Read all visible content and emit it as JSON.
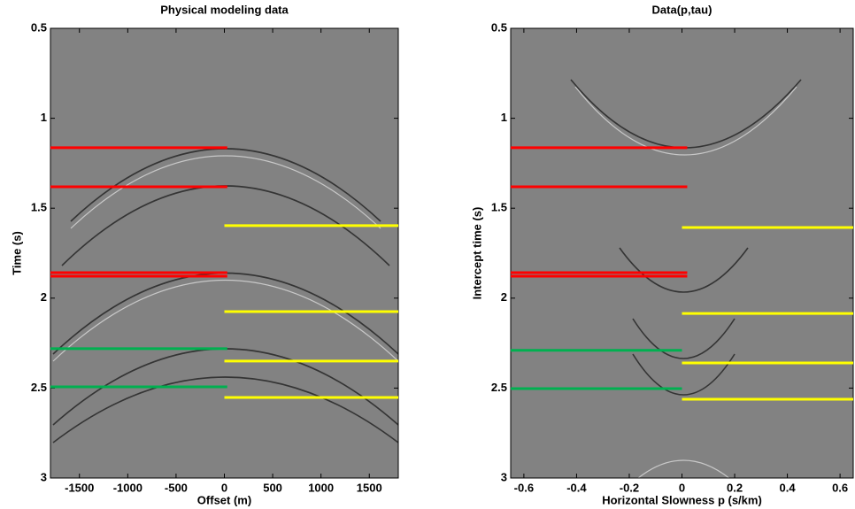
{
  "chart_data": [
    {
      "type": "seismic",
      "title": "Physical modeling data",
      "xlabel": "Offset (m)",
      "ylabel": "Time (s)",
      "xlim": [
        -1800,
        1800
      ],
      "ylim": [
        3,
        0.5
      ],
      "xticks": [
        -1500,
        -1000,
        -500,
        0,
        500,
        1000,
        1500
      ],
      "yticks": [
        0.5,
        1,
        1.5,
        2,
        2.5,
        3
      ],
      "hlines": [
        {
          "color": "#ff0000",
          "y": 1.164,
          "x": [
            -1800,
            30
          ]
        },
        {
          "color": "#ff0000",
          "y": 1.381,
          "x": [
            -1800,
            30
          ]
        },
        {
          "color": "#ff0000",
          "y": 1.858,
          "x": [
            -1800,
            30
          ]
        },
        {
          "color": "#ff0000",
          "y": 1.878,
          "x": [
            -1800,
            30
          ]
        },
        {
          "color": "#00b050",
          "y": 2.281,
          "x": [
            -1800,
            30
          ]
        },
        {
          "color": "#00b050",
          "y": 2.493,
          "x": [
            -1800,
            30
          ]
        },
        {
          "color": "#ffff00",
          "y": 1.597,
          "x": [
            0,
            1800
          ]
        },
        {
          "color": "#ffff00",
          "y": 2.075,
          "x": [
            0,
            1800
          ]
        },
        {
          "color": "#ffff00",
          "y": 2.35,
          "x": [
            0,
            1800
          ]
        },
        {
          "color": "#ffff00",
          "y": 2.552,
          "x": [
            0,
            1800
          ]
        }
      ]
    },
    {
      "type": "seismic",
      "title": "Data(p,tau)",
      "xlabel": "Horizontal Slowness p (s/km)",
      "ylabel": "Intercept time (s)",
      "xlim": [
        -0.65,
        0.65
      ],
      "ylim": [
        3,
        0.5
      ],
      "xticks": [
        -0.6,
        -0.4,
        -0.2,
        0,
        0.2,
        0.4,
        0.6
      ],
      "yticks": [
        0.5,
        1,
        1.5,
        2,
        2.5,
        3
      ],
      "hlines": [
        {
          "color": "#ff0000",
          "y": 1.164,
          "x": [
            -0.65,
            0.02
          ]
        },
        {
          "color": "#ff0000",
          "y": 1.381,
          "x": [
            -0.65,
            0.02
          ]
        },
        {
          "color": "#ff0000",
          "y": 1.858,
          "x": [
            -0.65,
            0.02
          ]
        },
        {
          "color": "#ff0000",
          "y": 1.878,
          "x": [
            -0.65,
            0.02
          ]
        },
        {
          "color": "#00b050",
          "y": 2.29,
          "x": [
            -0.65,
            0.0
          ]
        },
        {
          "color": "#00b050",
          "y": 2.503,
          "x": [
            -0.65,
            0.0
          ]
        },
        {
          "color": "#ffff00",
          "y": 1.607,
          "x": [
            0,
            0.65
          ]
        },
        {
          "color": "#ffff00",
          "y": 2.085,
          "x": [
            0,
            0.65
          ]
        },
        {
          "color": "#ffff00",
          "y": 2.36,
          "x": [
            0,
            0.65
          ]
        },
        {
          "color": "#ffff00",
          "y": 2.562,
          "x": [
            0,
            0.65
          ]
        }
      ]
    }
  ]
}
